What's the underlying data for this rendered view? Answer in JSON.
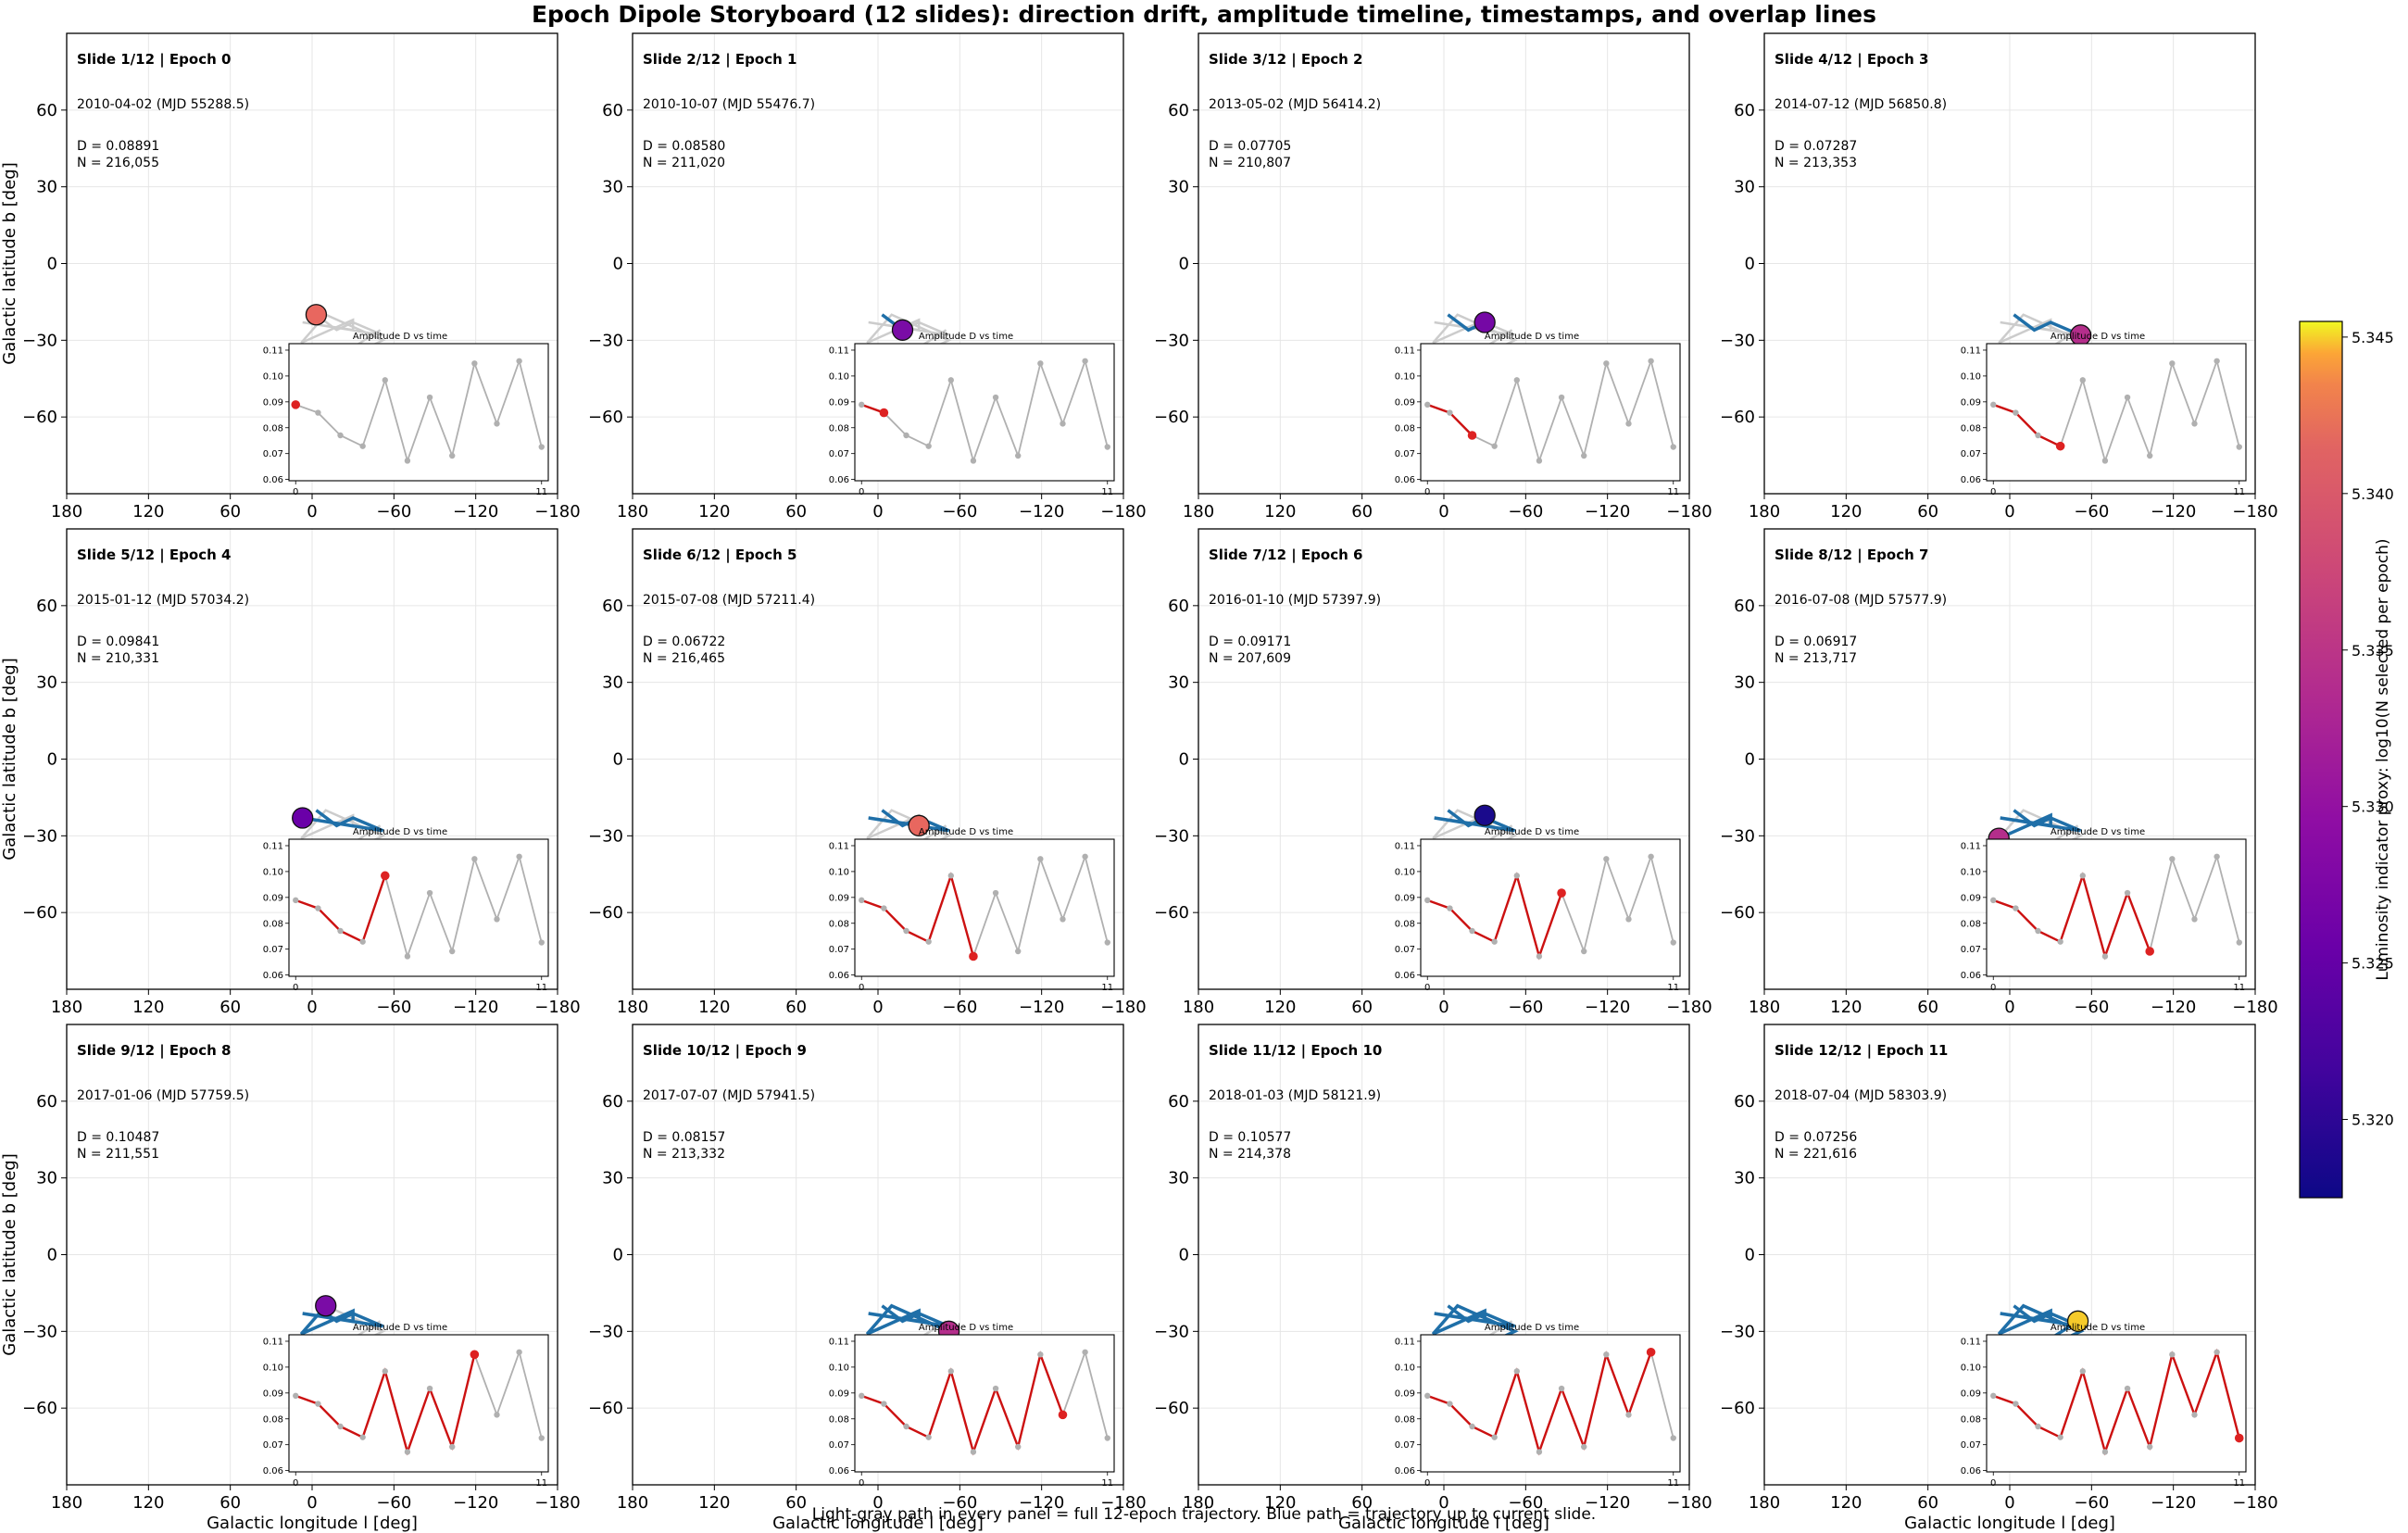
{
  "title": "Epoch Dipole Storyboard (12 slides): direction drift, amplitude timeline, timestamps, and overlap lines",
  "footnote": "Light-gray path in every panel = full 12-epoch trajectory. Blue path = trajectory up to current slide.",
  "colors": {
    "full_path": "#cccccc",
    "partial_path": "#1f6fa8",
    "inset_full": "#b0b0b0",
    "inset_partial": "#cc1111",
    "inset_current": "#dd2222",
    "grid": "#e6e6e6"
  },
  "chart_data": {
    "type": "scatter",
    "xlabel": "Galactic longitude l [deg]",
    "ylabel": "Galactic latitude b [deg]",
    "xlim": [
      180,
      -180
    ],
    "ylim": [
      -90,
      90
    ],
    "xticks": [
      180,
      120,
      60,
      0,
      -60,
      -120,
      -180
    ],
    "xtick_labels": [
      "180",
      "120",
      "60",
      "0",
      "−60",
      "−120",
      "−180"
    ],
    "yticks": [
      60,
      30,
      0,
      -30,
      -60
    ],
    "ytick_labels": [
      "60",
      "30",
      "0",
      "−30",
      "−60"
    ],
    "grid": true,
    "trajectory": {
      "l": [
        -3,
        -18,
        -30,
        -52,
        7,
        -30,
        -30,
        8,
        -10,
        -52,
        0,
        -50
      ],
      "b": [
        -20,
        -26,
        -23,
        -28,
        -23,
        -26,
        -22,
        -31,
        -20,
        -30,
        -43,
        -26
      ]
    },
    "colorbar": {
      "label": "Luminosity indicator proxy: log10(N selected per epoch)",
      "range": [
        5.3175,
        5.3455
      ],
      "ticks": [
        5.32,
        5.325,
        5.33,
        5.335,
        5.34,
        5.345
      ],
      "tick_labels": [
        "5.320",
        "5.325",
        "5.330",
        "5.335",
        "5.340",
        "5.345"
      ]
    },
    "inset": {
      "title": "Amplitude D vs time",
      "xlim": [
        -0.3,
        11.3
      ],
      "ylim": [
        0.0595,
        0.1125
      ],
      "xticks": [
        0,
        11
      ],
      "xtick_labels": [
        "0",
        "11"
      ],
      "yticks": [
        0.06,
        0.07,
        0.08,
        0.09,
        0.1,
        0.11
      ],
      "ytick_labels": [
        "0.06",
        "0.07",
        "0.08",
        "0.09",
        "0.10",
        "0.11"
      ],
      "amplitudes": [
        0.08891,
        0.0858,
        0.07705,
        0.07287,
        0.09841,
        0.06722,
        0.09171,
        0.06917,
        0.10487,
        0.08157,
        0.10577,
        0.07256
      ]
    },
    "slides": [
      {
        "title": "Slide 1/12  |  Epoch 0",
        "date": "2010-04-02  (MJD 55288.5)",
        "D": "D = 0.08891",
        "N": "N = 216,055",
        "marker_color": "#e8675f"
      },
      {
        "title": "Slide 2/12  |  Epoch 1",
        "date": "2010-10-07  (MJD 55476.7)",
        "D": "D = 0.08580",
        "N": "N = 211,020",
        "marker_color": "#7a0ca6"
      },
      {
        "title": "Slide 3/12  |  Epoch 2",
        "date": "2013-05-02  (MJD 56414.2)",
        "D": "D = 0.07705",
        "N": "N = 210,807",
        "marker_color": "#7508a5"
      },
      {
        "title": "Slide 4/12  |  Epoch 3",
        "date": "2014-07-12  (MJD 56850.8)",
        "D": "D = 0.07287",
        "N": "N = 213,353",
        "marker_color": "#b42e8b"
      },
      {
        "title": "Slide 5/12  |  Epoch 4",
        "date": "2015-01-12  (MJD 57034.2)",
        "D": "D = 0.09841",
        "N": "N = 210,331",
        "marker_color": "#6a00a8"
      },
      {
        "title": "Slide 6/12  |  Epoch 5",
        "date": "2015-07-08  (MJD 57211.4)",
        "D": "D = 0.06722",
        "N": "N = 216,465",
        "marker_color": "#e8675f"
      },
      {
        "title": "Slide 7/12  |  Epoch 6",
        "date": "2016-01-10  (MJD 57397.9)",
        "D": "D = 0.09171",
        "N": "N = 207,609",
        "marker_color": "#1a0a8c"
      },
      {
        "title": "Slide 8/12  |  Epoch 7",
        "date": "2016-07-08  (MJD 57577.9)",
        "D": "D = 0.06917",
        "N": "N = 213,717",
        "marker_color": "#b42e8b"
      },
      {
        "title": "Slide 9/12  |  Epoch 8",
        "date": "2017-01-06  (MJD 57759.5)",
        "D": "D = 0.10487",
        "N": "N = 211,551",
        "marker_color": "#7a0ca6"
      },
      {
        "title": "Slide 10/12  |  Epoch 9",
        "date": "2017-07-07  (MJD 57941.5)",
        "D": "D = 0.08157",
        "N": "N = 213,332",
        "marker_color": "#b42e8b"
      },
      {
        "title": "Slide 11/12  |  Epoch 10",
        "date": "2018-01-03  (MJD 58121.9)",
        "D": "D = 0.10577",
        "N": "N = 214,378",
        "marker_color": "#c9407a"
      },
      {
        "title": "Slide 12/12  |  Epoch 11",
        "date": "2018-07-04  (MJD 58303.9)",
        "D": "D = 0.07256",
        "N": "N = 221,616",
        "marker_color": "#f5ca2a"
      }
    ]
  }
}
